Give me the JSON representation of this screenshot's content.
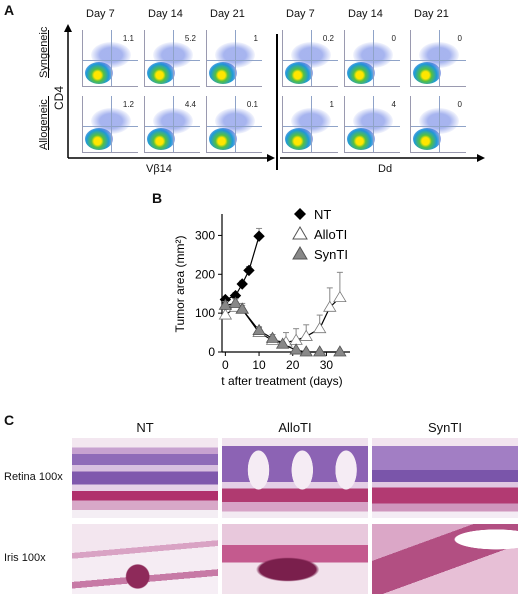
{
  "panels": {
    "a": {
      "letter": "A",
      "days": [
        "Day 7",
        "Day 14",
        "Day 21",
        "Day 7",
        "Day 14",
        "Day 21"
      ],
      "row_labels": [
        "Syngeneic",
        "Allogeneic"
      ],
      "y_axis_label": "CD4",
      "x_axis_left": "Vβ14",
      "x_axis_right": "Dd",
      "values": {
        "syngeneic": [
          "1.1",
          "5.2",
          "1",
          "0.2",
          "0",
          "0"
        ],
        "allogeneic": [
          "1.2",
          "4.4",
          "0.1",
          "1",
          "4",
          "0"
        ]
      }
    },
    "b": {
      "letter": "B"
    },
    "c": {
      "letter": "C",
      "columns": [
        "NT",
        "AlloTI",
        "SynTI"
      ],
      "rows": [
        "Retina 100x",
        "Iris 100x"
      ]
    }
  },
  "chart_data": {
    "type": "line",
    "xlabel": "t after treatment (days)",
    "ylabel": "Tumor area (mm²)",
    "xlim": [
      -1,
      37
    ],
    "ylim": [
      0,
      350
    ],
    "xticks": [
      0,
      10,
      20,
      30
    ],
    "yticks": [
      0,
      100,
      200,
      300
    ],
    "legend_position": "top-right",
    "series": [
      {
        "name": "NT",
        "marker": "diamond",
        "color": "#000000",
        "x": [
          0,
          3,
          5,
          7,
          10
        ],
        "y": [
          135,
          145,
          175,
          210,
          298
        ],
        "err": [
          5,
          8,
          8,
          10,
          20
        ]
      },
      {
        "name": "AlloTI",
        "marker": "triangle",
        "color": "#ffffff",
        "x": [
          0,
          3,
          5,
          10,
          14,
          18,
          21,
          24,
          28,
          31,
          34
        ],
        "y": [
          95,
          115,
          110,
          50,
          30,
          25,
          30,
          40,
          60,
          115,
          140
        ],
        "err": [
          15,
          15,
          15,
          15,
          15,
          25,
          30,
          30,
          35,
          50,
          65
        ]
      },
      {
        "name": "SynTI",
        "marker": "triangle",
        "color": "#888888",
        "x": [
          0,
          3,
          5,
          10,
          14,
          17,
          21,
          24,
          28,
          34
        ],
        "y": [
          120,
          125,
          110,
          55,
          35,
          20,
          5,
          0,
          0,
          0
        ],
        "err": [
          10,
          12,
          10,
          8,
          10,
          5,
          3,
          0,
          0,
          0
        ]
      }
    ]
  }
}
